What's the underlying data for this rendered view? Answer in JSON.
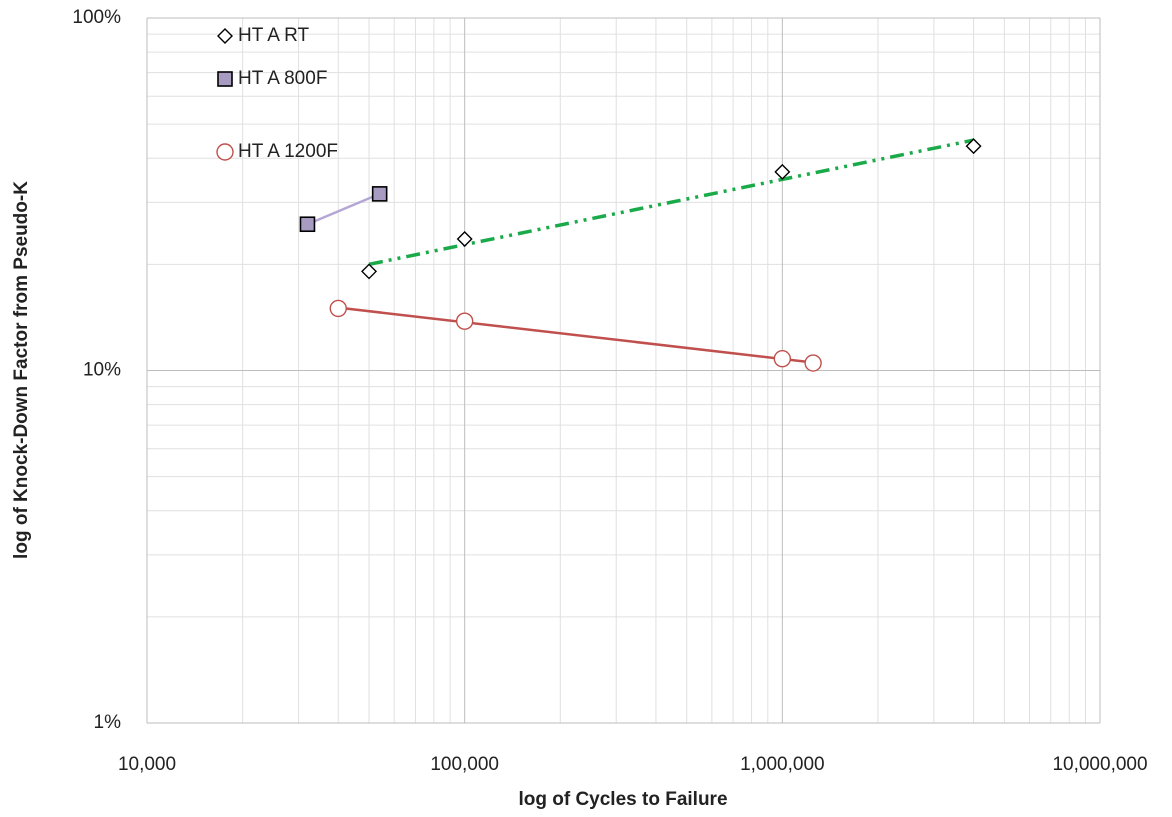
{
  "chart_data": {
    "type": "scatter",
    "x_label": "log of Cycles to Failure",
    "y_label": "log of Knock-Down Factor from Pseudo-K",
    "log_x": true,
    "log_y": true,
    "grid": true,
    "minor_grid": true,
    "legend": "upper left",
    "trendline": "power",
    "xlim": [
      10000,
      10000000
    ],
    "xticks": [
      {
        "value": 10000,
        "label": "10,000"
      },
      {
        "value": 100000,
        "label": "100,000"
      },
      {
        "value": 1000000,
        "label": "1,000,000"
      },
      {
        "value": 10000000,
        "label": "10,000,000"
      }
    ],
    "ylim": [
      1,
      100
    ],
    "yticks": [
      {
        "value": 1,
        "label": "1%"
      },
      {
        "value": 10,
        "label": "10%"
      },
      {
        "value": 100,
        "label": "100%"
      }
    ],
    "series": [
      {
        "name": "HT A RT",
        "marker": "diamond",
        "color": "#000000",
        "fill": "#ffffff",
        "line_color": "#1aaa4a",
        "dash": "14 6 3 6 3 6",
        "x": [
          50000,
          100000,
          1000000,
          4000000
        ],
        "values": [
          19.1,
          23.6,
          36.6,
          43.3
        ]
      },
      {
        "name": "HT A 800F",
        "marker": "square",
        "color": "#000000",
        "fill": "#a89bc2",
        "line_color": "#b4a7d6",
        "dash": "none",
        "x": [
          32000,
          54000
        ],
        "values": [
          26.0,
          31.7
        ]
      },
      {
        "name": "HT A 1200F",
        "marker": "circle",
        "color": "#c0504d",
        "fill": "#ffffff",
        "line_color": "#c0504d",
        "dash": "none",
        "x": [
          40000,
          100000,
          1000000,
          1250000
        ],
        "values": [
          15.0,
          13.8,
          10.8,
          10.5
        ]
      }
    ]
  }
}
